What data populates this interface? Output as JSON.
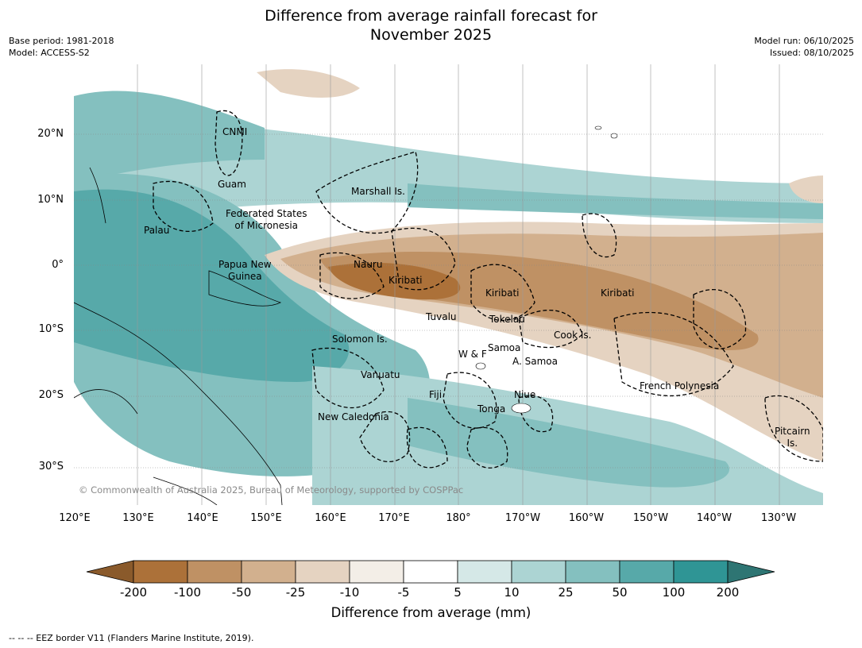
{
  "title": {
    "line1": "Difference from average rainfall forecast for",
    "line2": "November 2025"
  },
  "meta_left": {
    "base_period": "Base period: 1981-2018",
    "model": "Model: ACCESS-S2"
  },
  "meta_right": {
    "model_run": "Model run: 06/10/2025",
    "issued": "Issued: 08/10/2025"
  },
  "lat_labels": [
    "20°N",
    "10°N",
    "0°",
    "10°S",
    "20°S",
    "30°S"
  ],
  "lon_labels": [
    "120°E",
    "130°E",
    "140°E",
    "150°E",
    "160°E",
    "170°E",
    "180°",
    "170°W",
    "160°W",
    "150°W",
    "140°W",
    "130°W"
  ],
  "places": {
    "cnmi": "CNMI",
    "guam": "Guam",
    "marshall": "Marshall Is.",
    "fsm1": "Federated States",
    "fsm2": "of Micronesia",
    "palau": "Palau",
    "png1": "Papua New",
    "png2": "Guinea",
    "nauru": "Nauru",
    "kiribati_w": "Kiribati",
    "kiribati_c": "Kiribati",
    "kiribati_e": "Kiribati",
    "tuvalu": "Tuvalu",
    "tokelau": "Tokelau",
    "cook": "Cook Is.",
    "solomon": "Solomon Is.",
    "samoa": "Samoa",
    "wf": "W & F",
    "asamoa": "A. Samoa",
    "vanuatu": "Vanuatu",
    "fiji": "Fiji",
    "niue": "Niue",
    "tonga": "Tonga",
    "frenchpoly": "French Polynesia",
    "newcal": "New Caledonia",
    "pitcairn1": "Pitcairn",
    "pitcairn2": "Is."
  },
  "copyright": "© Commonwealth of Australia 2025, Bureau of Meteorology, supported by COSPPac",
  "colorbar": {
    "labels": [
      "-200",
      "-100",
      "-50",
      "-25",
      "-10",
      "-5",
      "5",
      "10",
      "25",
      "50",
      "100",
      "200"
    ],
    "colors": [
      "#8a5a2b",
      "#ac7139",
      "#bf9164",
      "#d2b08e",
      "#e5d3c1",
      "#f3eee7",
      "#ffffff",
      "#d5e8e7",
      "#acd4d3",
      "#84c0bf",
      "#57a9a9",
      "#2f9595",
      "#2e7573"
    ],
    "title": "Difference from average (mm)"
  },
  "footnote": "--  --  -- EEZ border V11 (Flanders Marine Institute, 2019)."
}
